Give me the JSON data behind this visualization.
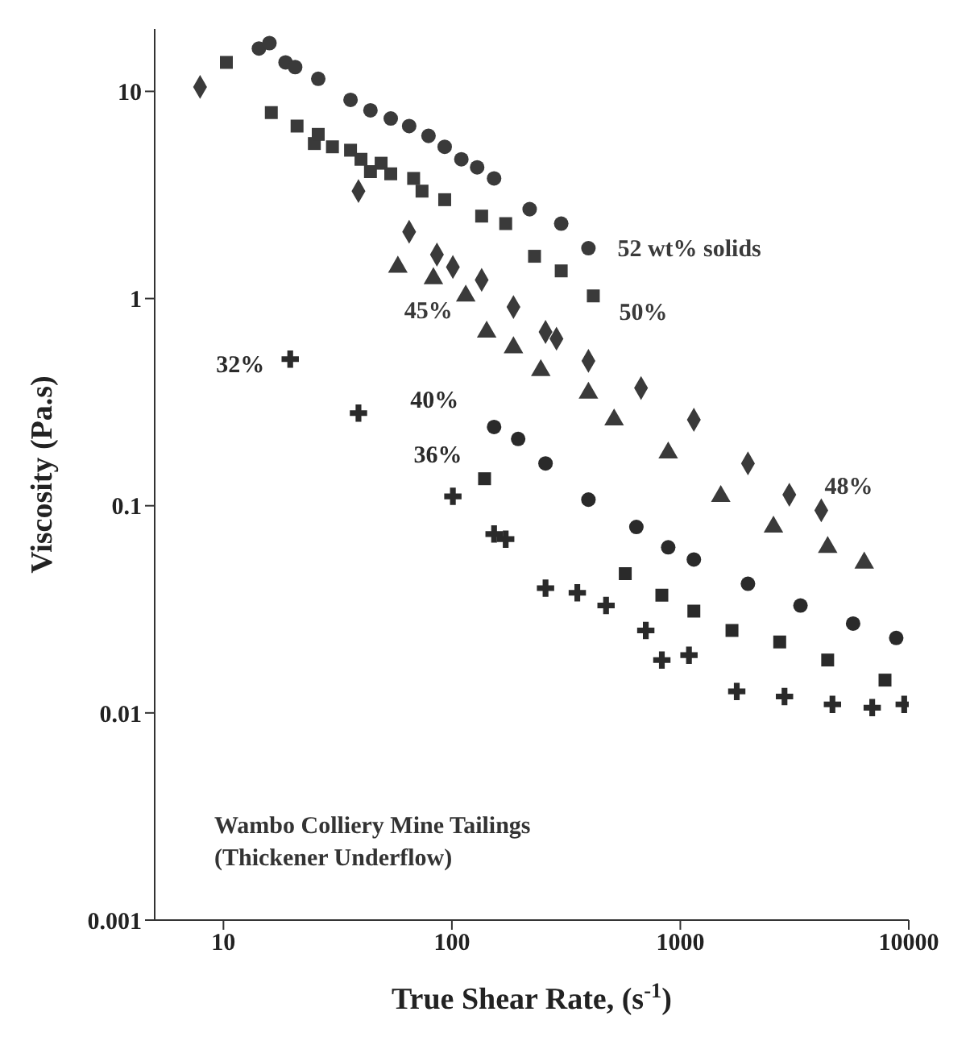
{
  "chart_data": {
    "type": "scatter",
    "xlabel": "True Shear Rate,  (s$^{-1}$)",
    "ylabel": "Viscosity (Pa.s)",
    "log": "xy",
    "xlim": [
      5,
      10000
    ],
    "ylim": [
      0.001,
      20
    ],
    "xticks": [
      10,
      100,
      1000,
      10000
    ],
    "yticks": [
      0.001,
      0.01,
      0.1,
      1,
      10
    ],
    "grid": false,
    "legend": false,
    "series": [
      {
        "name": "52 wt% solids",
        "color": "#3a3a3a",
        "marker": "circle",
        "x": [
          14.3,
          15.9,
          18.7,
          20.6,
          26,
          36,
          44,
          54,
          65,
          79,
          93,
          110,
          129,
          153,
          219,
          301,
          396
        ],
        "values": [
          16.1,
          17.1,
          13.8,
          13.1,
          11.5,
          9.1,
          8.1,
          7.4,
          6.8,
          6.1,
          5.4,
          4.7,
          4.3,
          3.8,
          2.7,
          2.3,
          1.75
        ]
      },
      {
        "name": "50%",
        "color": "#3a3a3a",
        "marker": "square",
        "x": [
          10.3,
          16.2,
          21,
          25,
          26,
          30,
          36,
          40,
          44,
          49,
          54,
          68,
          74,
          93,
          135,
          172,
          230,
          301,
          416
        ],
        "values": [
          13.8,
          7.9,
          6.8,
          5.6,
          6.2,
          5.4,
          5.2,
          4.7,
          4.1,
          4.5,
          4.0,
          3.8,
          3.3,
          3.0,
          2.5,
          2.3,
          1.6,
          1.36,
          1.03
        ]
      },
      {
        "name": "48%",
        "color": "#3a3a3a",
        "marker": "diamond",
        "x": [
          7.9,
          39,
          65,
          86,
          101,
          135,
          186,
          257,
          287,
          396,
          673,
          1146,
          1977,
          3000,
          4140
        ],
        "values": [
          10.5,
          3.3,
          2.1,
          1.63,
          1.42,
          1.23,
          0.91,
          0.69,
          0.64,
          0.5,
          0.37,
          0.26,
          0.16,
          0.113,
          0.095
        ]
      },
      {
        "name": "45%",
        "color": "#3a3a3a",
        "marker": "triangle",
        "x": [
          58,
          83,
          115,
          142,
          186,
          245,
          396,
          513,
          885,
          1503,
          2557,
          4416,
          6383
        ],
        "values": [
          1.42,
          1.25,
          1.03,
          0.69,
          0.58,
          0.45,
          0.35,
          0.26,
          0.18,
          0.111,
          0.079,
          0.063,
          0.053
        ]
      },
      {
        "name": "40%",
        "color": "#2a2a2a",
        "marker": "circle",
        "x": [
          153,
          195,
          257,
          396,
          642,
          885,
          1146,
          1977,
          3357,
          5706,
          8810
        ],
        "values": [
          0.24,
          0.21,
          0.16,
          0.107,
          0.079,
          0.063,
          0.055,
          0.042,
          0.033,
          0.027,
          0.023
        ]
      },
      {
        "name": "36%",
        "color": "#2a2a2a",
        "marker": "square",
        "x": [
          139,
          574,
          830,
          1146,
          1683,
          2723,
          4416,
          7870
        ],
        "values": [
          0.135,
          0.047,
          0.037,
          0.031,
          0.025,
          0.022,
          0.018,
          0.0144
        ]
      },
      {
        "name": "32%",
        "color": "#2a2a2a",
        "marker": "cross",
        "x": [
          19.6,
          39,
          101,
          153,
          172,
          257,
          354,
          473,
          706,
          830,
          1091,
          1766,
          2858,
          4634,
          6918,
          9550
        ],
        "values": [
          0.51,
          0.28,
          0.111,
          0.073,
          0.069,
          0.04,
          0.038,
          0.033,
          0.025,
          0.018,
          0.019,
          0.0127,
          0.012,
          0.011,
          0.0106,
          0.011
        ]
      }
    ],
    "annotations": [
      "Wambo Colliery Mine Tailings",
      "(Thickener Underflow)"
    ]
  }
}
